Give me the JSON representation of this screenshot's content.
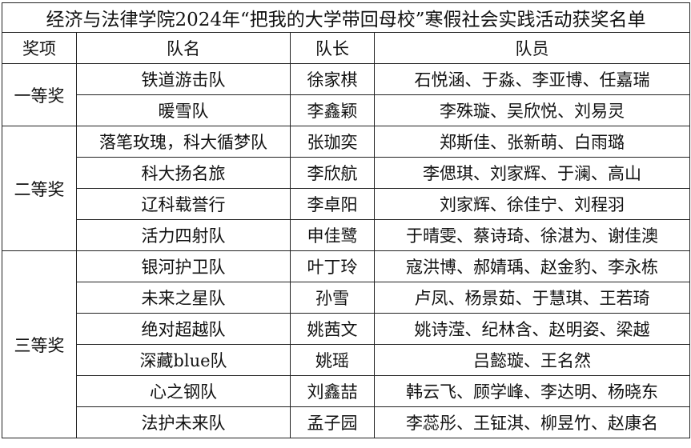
{
  "title": "经济与法律学院2024年“把我的大学带回母校”寒假社会实践活动获奖名单",
  "headers": [
    "奖项",
    "队名",
    "队长",
    "队员"
  ],
  "groups": [
    {
      "award": "一等奖",
      "rows": [
        {
          "team": "铁道游击队",
          "leader": "徐家棋",
          "members": "石悦涵、于淼、李亚博、任嘉瑞"
        },
        {
          "team": "暖雪队",
          "leader": "李鑫颖",
          "members": "李殊璇、吴欣悦、刘易灵"
        }
      ]
    },
    {
      "award": "二等奖",
      "rows": [
        {
          "team": "落笔玫瑰，科大循梦队",
          "leader": "张珈奕",
          "members": "郑斯佳、张新萌、白雨璐"
        },
        {
          "team": "科大扬名旅",
          "leader": "李欣航",
          "members": "李偲琪、刘家辉、于澜、高山"
        },
        {
          "team": "辽科载誉行",
          "leader": "李卓阳",
          "members": "刘家辉、徐佳宁、刘程羽"
        },
        {
          "team": "活力四射队",
          "leader": "申佳鹭",
          "members": "于晴雯、蔡诗琦、徐湛为、谢佳澳"
        }
      ]
    },
    {
      "award": "三等奖",
      "rows": [
        {
          "team": "银河护卫队",
          "leader": "叶丁玲",
          "members": "寇洪博、郝婧瑀、赵金豹、李永栋"
        },
        {
          "team": "未来之星队",
          "leader": "孙雪",
          "members": "卢凤、杨景茹、于慧琪、王若琦"
        },
        {
          "team": "绝对超越队",
          "leader": "姚茜文",
          "members": "姚诗滢、纪林含、赵明姿、梁越"
        },
        {
          "team": "深藏blue队",
          "leader": "姚瑶",
          "members": "吕懿璇、王名然"
        },
        {
          "team": "心之钢队",
          "leader": "刘鑫喆",
          "members": "韩云飞、顾学峰、李达明、杨晓东"
        },
        {
          "team": "法护未来队",
          "leader": "孟子园",
          "members": "李蕊彤、王钲淇、柳昱竹、赵康名"
        }
      ]
    }
  ]
}
